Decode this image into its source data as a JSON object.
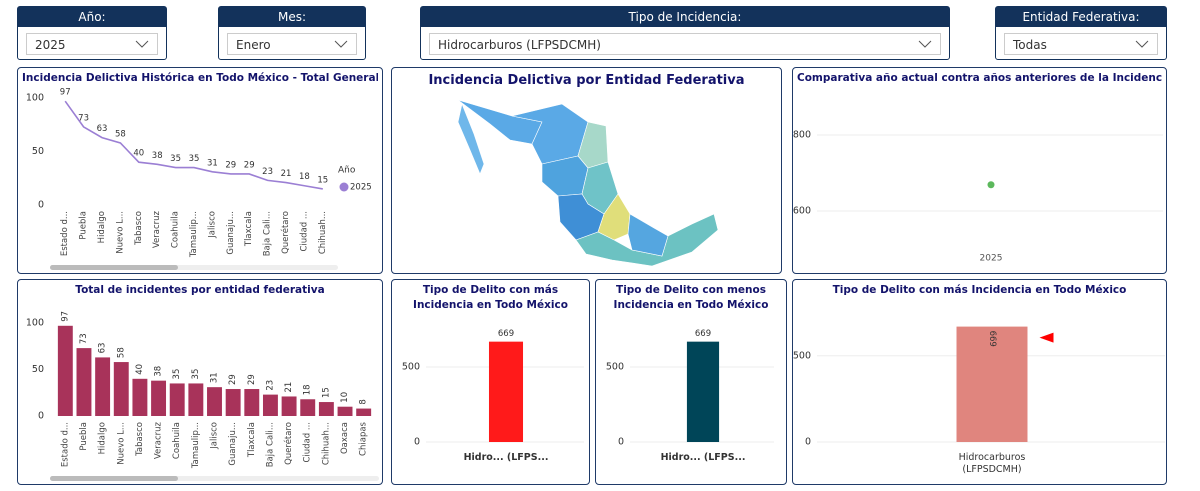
{
  "filters": [
    {
      "label": "Año:",
      "value": "2025"
    },
    {
      "label": "Mes:",
      "value": "Enero"
    },
    {
      "label": "Tipo de Incidencia:",
      "value": "Hidrocarburos (LFPSDCMH)"
    },
    {
      "label": "Entidad Federativa:",
      "value": "Todas"
    }
  ],
  "chart_data": [
    {
      "type": "line",
      "title": "Incidencia Delictiva Histórica en Todo México - Total General",
      "categories": [
        "Estado d...",
        "Puebla",
        "Hidalgo",
        "Nuevo L...",
        "Tabasco",
        "Veracruz",
        "Coahuila",
        "Tamaulip...",
        "Jalisco",
        "Guanaju...",
        "Tlaxcala",
        "Baja Cali...",
        "Querétaro",
        "Ciudad ...",
        "Chihuah..."
      ],
      "legend_title": "Año",
      "series": [
        {
          "name": "2025",
          "color": "#9b7fd4",
          "values": [
            97,
            73,
            63,
            58,
            40,
            38,
            35,
            35,
            31,
            29,
            29,
            23,
            21,
            18,
            15
          ]
        }
      ],
      "ylim": [
        0,
        100
      ],
      "yticks": [
        0,
        50,
        100
      ],
      "grid": false
    },
    {
      "type": "map",
      "title": "Incidencia Delictiva por Entidad Federativa"
    },
    {
      "type": "scatter",
      "title": "Comparativa año actual contra años anteriores de la Incidencia Delict...",
      "categories": [
        "2025"
      ],
      "values": [
        669
      ],
      "color": "#5cb85c",
      "ylim": [
        500,
        900
      ],
      "yticks": [
        600,
        800
      ],
      "grid": true
    },
    {
      "type": "bar",
      "title": "Total de incidentes por entidad federativa",
      "categories": [
        "Estado d...",
        "Puebla",
        "Hidalgo",
        "Nuevo L...",
        "Tabasco",
        "Veracruz",
        "Coahuila",
        "Tamaulip...",
        "Jalisco",
        "Guanaju...",
        "Tlaxcala",
        "Baja Cali...",
        "Querétaro",
        "Ciudad ...",
        "Chihuah...",
        "Oaxaca",
        "Chiapas"
      ],
      "values": [
        97,
        73,
        63,
        58,
        40,
        38,
        35,
        35,
        31,
        29,
        29,
        23,
        21,
        18,
        15,
        10,
        8
      ],
      "color": "#a8335a",
      "ylim": [
        0,
        100
      ],
      "yticks": [
        0,
        50,
        100
      ],
      "grid": false
    },
    {
      "type": "bar",
      "title": "Tipo de Delito con más Incidencia en Todo México",
      "categories": [
        "Hidro... (LFPS..."
      ],
      "values": [
        669
      ],
      "color": "#ff1a1a",
      "ylim": [
        0,
        800
      ],
      "yticks": [
        0,
        500
      ],
      "grid": true
    },
    {
      "type": "bar",
      "title": "Tipo de Delito con menos Incidencia en Todo México",
      "categories": [
        "Hidro... (LFPS..."
      ],
      "values": [
        669
      ],
      "color": "#004558",
      "ylim": [
        0,
        800
      ],
      "yticks": [
        0,
        500
      ],
      "grid": true
    },
    {
      "type": "bar",
      "title": "Tipo de Delito con más Incidencia en Todo México",
      "categories": [
        "Hidrocarburos (LFPSDCMH)"
      ],
      "values": [
        669
      ],
      "color": "#e0857e",
      "ylim": [
        0,
        800
      ],
      "yticks": [
        0,
        500
      ],
      "grid": true
    }
  ]
}
